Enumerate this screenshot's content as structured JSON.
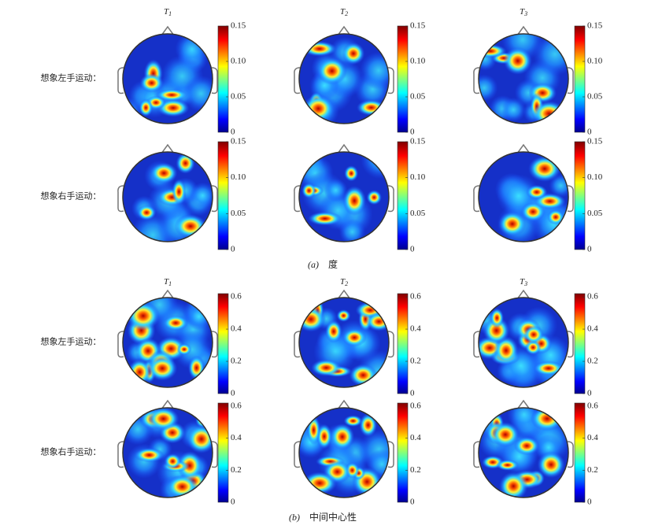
{
  "panels": [
    {
      "label": "(a)",
      "caption": "度",
      "columns": [
        {
          "main": "T",
          "sub": "1"
        },
        {
          "main": "T",
          "sub": "2"
        },
        {
          "main": "T",
          "sub": "3"
        }
      ],
      "rows": [
        "想象左手运动：",
        "想象右手运动："
      ],
      "colorbar": {
        "lim": [
          0,
          0.15
        ],
        "ticks": [
          0,
          0.05,
          {
            "value": 0.1,
            "label": "0.10"
          },
          0.15
        ]
      }
    },
    {
      "label": "(b)",
      "caption": "中间中心性",
      "columns": [
        {
          "main": "T",
          "sub": "1"
        },
        {
          "main": "T",
          "sub": "2"
        },
        {
          "main": "T",
          "sub": "3"
        }
      ],
      "rows": [
        "想象左手运动：",
        "想象右手运动："
      ],
      "colorbar": {
        "lim": [
          0,
          0.62
        ],
        "ticks": [
          0,
          0.2,
          0.4,
          0.6
        ]
      }
    }
  ]
}
